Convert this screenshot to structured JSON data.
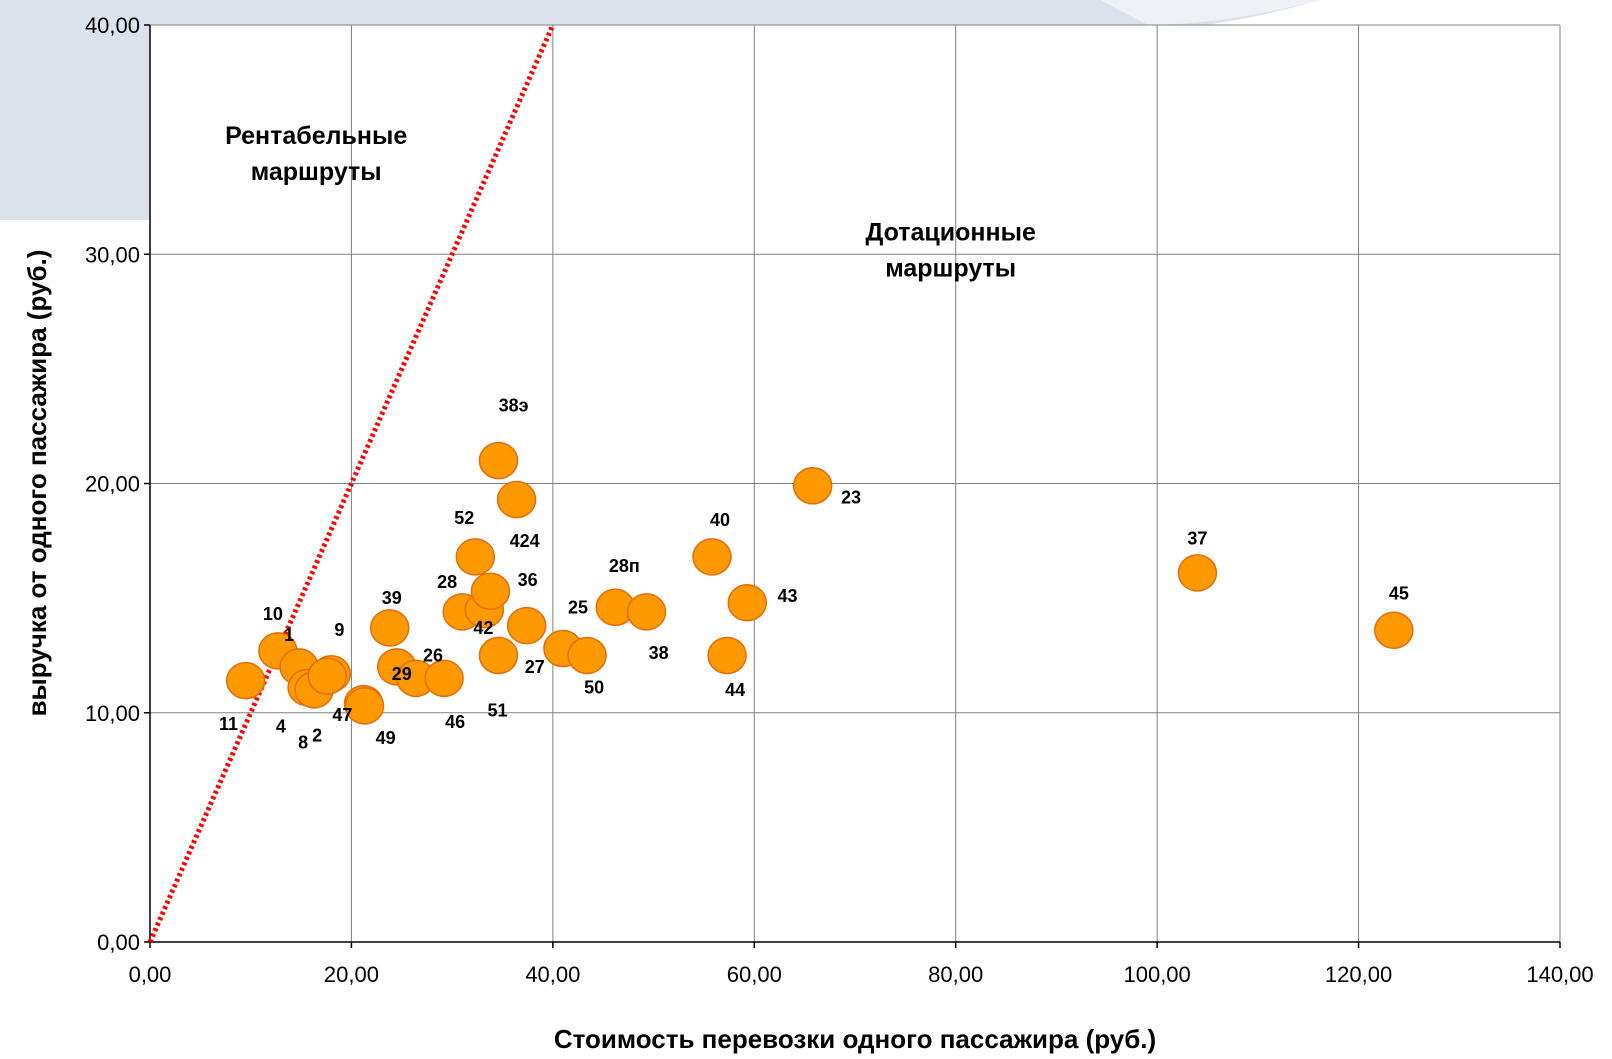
{
  "chart_data": {
    "type": "scatter",
    "xlabel": "Стоимость перевозки одного пассажира (руб.)",
    "ylabel": "выручка от одного пассажира (руб.)",
    "xlim": [
      0,
      140
    ],
    "ylim": [
      0,
      40
    ],
    "x_ticks": [
      "0,00",
      "20,00",
      "40,00",
      "60,00",
      "80,00",
      "100,00",
      "120,00",
      "140,00"
    ],
    "y_ticks": [
      "0,00",
      "10,00",
      "20,00",
      "30,00",
      "40,00"
    ],
    "grid": true,
    "colors": {
      "marker_fill": "#FF9900",
      "marker_stroke": "#E46C0A",
      "reference_line": "#FF0000",
      "grid": "#808080"
    },
    "reference_line": {
      "style": "dotted",
      "points": [
        [
          0,
          0
        ],
        [
          40,
          40
        ]
      ]
    },
    "annotations": [
      {
        "text": [
          "Рентабельные",
          "маршруты"
        ],
        "x": 16.5,
        "y": 34.8
      },
      {
        "text": [
          "Дотационные",
          "маршруты"
        ],
        "x": 79.5,
        "y": 30.6
      }
    ],
    "points": [
      {
        "label": "10",
        "x": 12.7,
        "y": 12.7
      },
      {
        "label": "11",
        "x": 9.5,
        "y": 11.4
      },
      {
        "label": "1",
        "x": 14.8,
        "y": 12.0
      },
      {
        "label": "4",
        "x": 15.6,
        "y": 11.1
      },
      {
        "label": "8",
        "x": 16.3,
        "y": 11.0
      },
      {
        "label": "9",
        "x": 18.0,
        "y": 11.7
      },
      {
        "label": "2",
        "x": 17.6,
        "y": 11.6
      },
      {
        "label": "47",
        "x": 21.2,
        "y": 10.4
      },
      {
        "label": "49",
        "x": 21.3,
        "y": 10.3
      },
      {
        "label": "39",
        "x": 23.8,
        "y": 13.7
      },
      {
        "label": "29",
        "x": 24.5,
        "y": 12.0
      },
      {
        "label": "26",
        "x": 26.4,
        "y": 11.5
      },
      {
        "label": "46",
        "x": 29.2,
        "y": 11.5
      },
      {
        "label": "28",
        "x": 31.0,
        "y": 14.4
      },
      {
        "label": "52",
        "x": 32.3,
        "y": 16.8
      },
      {
        "label": "42",
        "x": 33.2,
        "y": 14.5
      },
      {
        "label": "36",
        "x": 33.8,
        "y": 15.3
      },
      {
        "label": "51",
        "x": 34.6,
        "y": 12.5
      },
      {
        "label": "27",
        "x": 37.4,
        "y": 13.8
      },
      {
        "label": "38э",
        "x": 34.6,
        "y": 21.0
      },
      {
        "label": "424",
        "x": 36.4,
        "y": 19.3
      },
      {
        "label": "25",
        "x": 41.0,
        "y": 12.8
      },
      {
        "label": "50",
        "x": 43.4,
        "y": 12.5
      },
      {
        "label": "28п",
        "x": 46.2,
        "y": 14.6
      },
      {
        "label": "38",
        "x": 49.3,
        "y": 14.4
      },
      {
        "label": "40",
        "x": 55.8,
        "y": 16.8
      },
      {
        "label": "44",
        "x": 57.3,
        "y": 12.5
      },
      {
        "label": "43",
        "x": 59.3,
        "y": 14.8
      },
      {
        "label": "23",
        "x": 65.8,
        "y": 19.9
      },
      {
        "label": "37",
        "x": 104.0,
        "y": 16.1
      },
      {
        "label": "45",
        "x": 123.5,
        "y": 13.6
      }
    ],
    "label_offsets_data_units": {
      "10": [
        -0.5,
        1.6
      ],
      "11": [
        -1.7,
        -1.9
      ],
      "1": [
        -1.0,
        1.4
      ],
      "4": [
        -2.6,
        -1.7
      ],
      "8": [
        -1.1,
        -2.3
      ],
      "9": [
        0.8,
        1.9
      ],
      "2": [
        -1.0,
        -2.6
      ],
      "47": [
        -2.1,
        -0.5
      ],
      "49": [
        2.1,
        -1.4
      ],
      "39": [
        0.2,
        1.3
      ],
      "29": [
        0.5,
        -0.3
      ],
      "26": [
        1.7,
        1.0
      ],
      "46": [
        1.1,
        -1.9
      ],
      "28": [
        -1.5,
        1.3
      ],
      "52": [
        -1.1,
        1.7
      ],
      "42": [
        -0.1,
        -0.8
      ],
      "36": [
        3.7,
        0.5
      ],
      "51": [
        -0.1,
        -2.4
      ],
      "27": [
        0.8,
        -1.8
      ],
      "38э": [
        1.5,
        2.4
      ],
      "424": [
        0.8,
        -1.8
      ],
      "25": [
        1.5,
        1.8
      ],
      "50": [
        0.7,
        -1.4
      ],
      "28п": [
        0.9,
        1.8
      ],
      "38": [
        1.2,
        -1.8
      ],
      "40": [
        0.8,
        1.6
      ],
      "44": [
        0.8,
        -1.5
      ],
      "43": [
        4.0,
        0.3
      ],
      "23": [
        3.8,
        -0.5
      ],
      "37": [
        0.0,
        1.5
      ],
      "45": [
        0.5,
        1.6
      ]
    }
  }
}
